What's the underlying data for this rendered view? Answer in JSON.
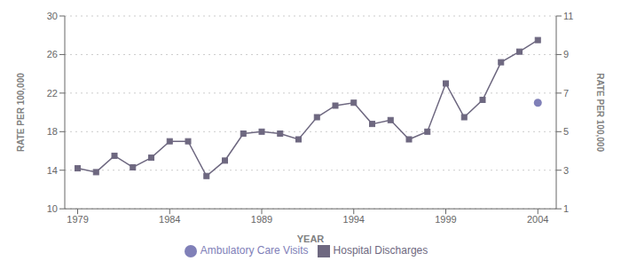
{
  "chart_data": {
    "type": "line",
    "xlabel": "YEAR",
    "ylabel": "RATE PER 100,000",
    "y2label": "RATE PER 100,000",
    "xlim": [
      1978.3,
      2005.0
    ],
    "xticks": [
      1979,
      1984,
      1989,
      1994,
      1999,
      2004
    ],
    "ylim": [
      10,
      30
    ],
    "yticks": [
      10,
      14,
      18,
      22,
      26,
      30
    ],
    "y2lim": [
      1,
      11
    ],
    "y2ticks": [
      1,
      3,
      5,
      7,
      9,
      11
    ],
    "grid": true,
    "legend": "bottom",
    "series": [
      {
        "name": "Hospital Discharges",
        "type": "line",
        "marker": "square",
        "color": "#6e6880",
        "x": [
          1979,
          1980,
          1981,
          1982,
          1983,
          1984,
          1985,
          1986,
          1987,
          1988,
          1989,
          1990,
          1991,
          1992,
          1993,
          1994,
          1995,
          1996,
          1997,
          1998,
          1999,
          2000,
          2001,
          2002,
          2003,
          2004
        ],
        "values": [
          14.2,
          13.8,
          15.5,
          14.3,
          15.3,
          17.0,
          17.0,
          13.4,
          15.0,
          17.8,
          18.0,
          17.8,
          17.2,
          19.5,
          20.7,
          21.0,
          18.8,
          19.2,
          17.2,
          18.0,
          23.0,
          19.5,
          21.3,
          25.2,
          26.3,
          27.5
        ]
      },
      {
        "name": "Ambulatory Care Visits",
        "type": "scatter",
        "marker": "circle",
        "color": "#8080b8",
        "x": [
          2004
        ],
        "values": [
          21.0
        ]
      }
    ]
  }
}
